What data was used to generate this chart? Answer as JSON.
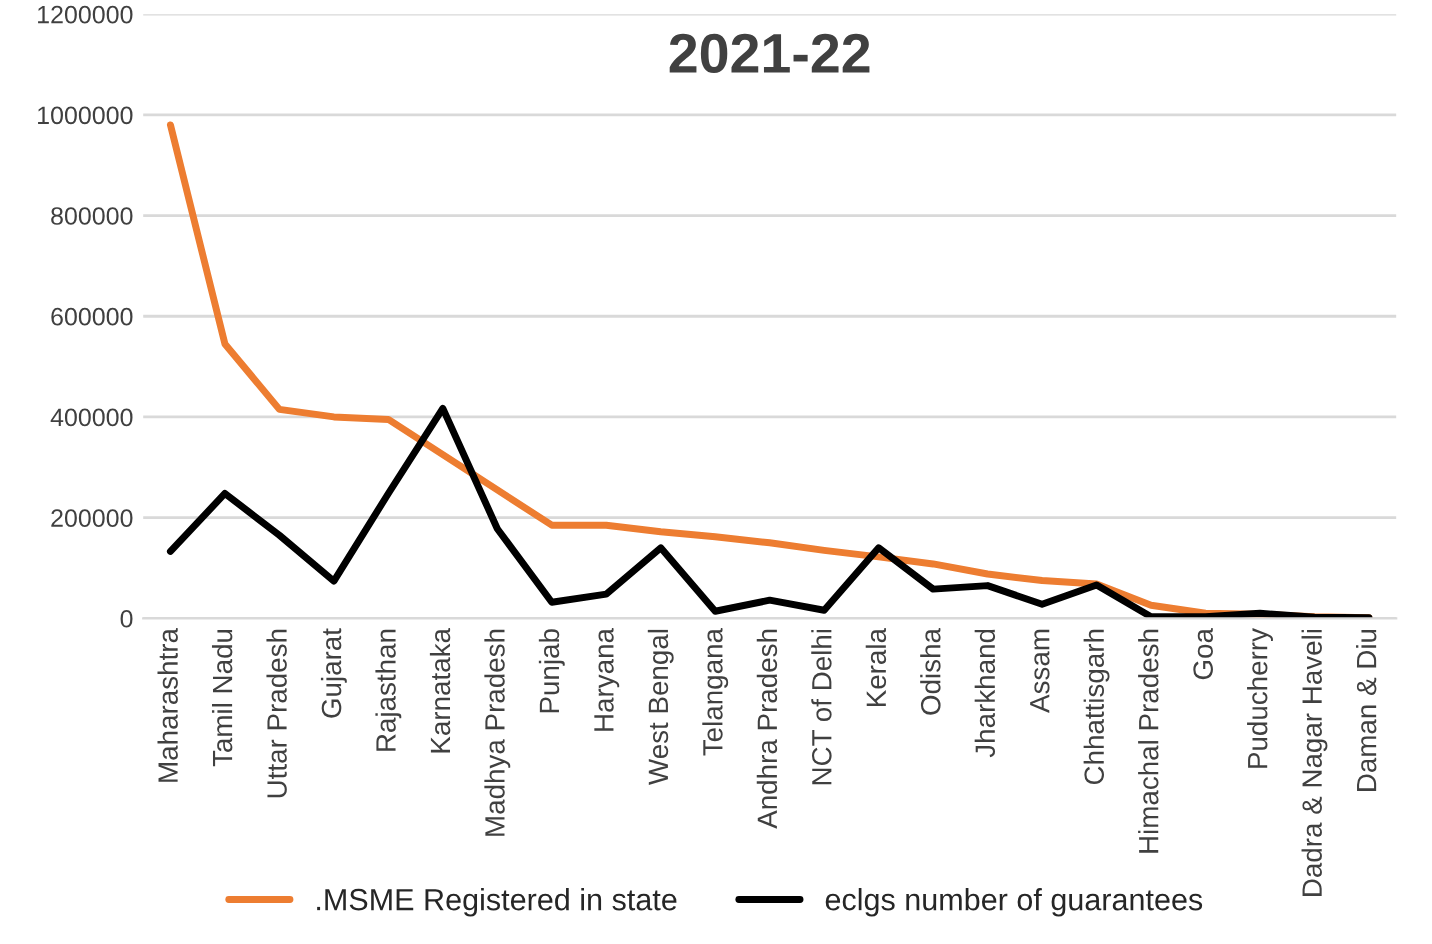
{
  "chart_data": {
    "type": "line",
    "title": "2021-22",
    "categories": [
      "Maharashtra",
      "Tamil Nadu",
      "Uttar Pradesh",
      "Gujarat",
      "Rajasthan",
      "Karnataka",
      "Madhya Pradesh",
      "Punjab",
      "Haryana",
      "West Bengal",
      "Telangana",
      "Andhra Pradesh",
      "NCT of Delhi",
      "Kerala",
      "Odisha",
      "Jharkhand",
      "Assam",
      "Chhattisgarh",
      "Himachal Pradesh",
      "Goa",
      "Puducherry",
      "Dadra & Nagar Haveli",
      "Daman & Diu"
    ],
    "series": [
      {
        "name": ".MSME Registered in state",
        "color": "#ed7d31",
        "values": [
          980000,
          545000,
          415000,
          400000,
          395000,
          325000,
          255000,
          185000,
          185000,
          172000,
          162000,
          150000,
          135000,
          122000,
          108000,
          88000,
          75000,
          68000,
          26000,
          10000,
          8000,
          3000,
          1000
        ]
      },
      {
        "name": "eclgs number of guarantees",
        "color": "#000000",
        "values": [
          133000,
          248000,
          165000,
          74000,
          248000,
          417000,
          178000,
          32000,
          48000,
          140000,
          14000,
          36000,
          16000,
          140000,
          58000,
          65000,
          28000,
          66000,
          3000,
          3000,
          10000,
          2000,
          1000
        ]
      }
    ],
    "ylim": [
      0,
      1200000
    ],
    "yticks": [
      0,
      200000,
      400000,
      600000,
      800000,
      1000000,
      1200000
    ],
    "grid": "y",
    "legend": "bottom",
    "marker": "none",
    "line_style": "solid"
  }
}
